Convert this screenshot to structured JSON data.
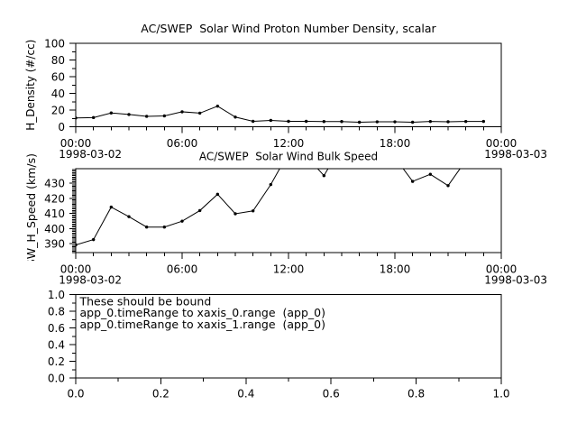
{
  "app": {
    "background_color": "#ffffff",
    "foreground_color": "#000000"
  },
  "chart_data": [
    {
      "type": "line",
      "title": "AC/SWEP  Solar Wind Proton Number Density, scalar",
      "ylabel": "H_Density (#/cc)",
      "xlabel": "",
      "x_hours": [
        0,
        1,
        2,
        3,
        4,
        5,
        6,
        7,
        8,
        9,
        10,
        11,
        12,
        13,
        14,
        15,
        16,
        17,
        18,
        19,
        20,
        21,
        22,
        23
      ],
      "values": [
        10.5,
        11.0,
        16.5,
        14.7,
        12.5,
        13.0,
        17.9,
        16.3,
        24.7,
        11.6,
        6.5,
        7.6,
        6.5,
        6.5,
        6.2,
        6.2,
        5.4,
        5.9,
        5.9,
        5.4,
        6.3,
        6.0,
        6.3,
        6.4
      ],
      "xlim_hours": [
        0,
        24
      ],
      "ylim": [
        0,
        100
      ],
      "yticks": {
        "major": [
          0,
          20,
          40,
          60,
          80,
          100
        ],
        "labels": [
          "0",
          "20",
          "40",
          "60",
          "80",
          "100"
        ],
        "minor_step": 10
      },
      "xticks": {
        "major_hours": [
          0,
          6,
          12,
          18,
          24
        ],
        "labels": [
          "00:00",
          "06:00",
          "12:00",
          "18:00",
          "00:00"
        ],
        "minor_step_hours": 1
      },
      "xdates": [
        {
          "label": "1998-03-02",
          "at_hour": 0
        },
        {
          "label": "1998-03-03",
          "at_hour": 24
        }
      ],
      "marker": "filled-circle",
      "line_color": "#000000",
      "grid": false,
      "legend": null
    },
    {
      "type": "line",
      "title": "AC/SWEP  Solar Wind Bulk Speed",
      "ylabel": "SW_H_Speed (km/s)",
      "xlabel": "",
      "x_hours": [
        0,
        1,
        2,
        3,
        4,
        5,
        6,
        7,
        8,
        9,
        10,
        11,
        12,
        13,
        14,
        15,
        16,
        17,
        18,
        19,
        20,
        21,
        22,
        23
      ],
      "values": [
        389.2,
        392.7,
        414.2,
        407.9,
        401.0,
        401.0,
        404.9,
        411.9,
        422.7,
        409.8,
        411.7,
        429.1,
        450.0,
        448.0,
        435.0,
        455.0,
        456.0,
        452.0,
        447.0,
        431.2,
        435.9,
        428.4,
        445.0,
        450.0
      ],
      "values_note": "points above 439.6 km/s are clipped by the plot top border",
      "xlim_hours": [
        0,
        24
      ],
      "ylim": [
        384.0,
        439.6
      ],
      "yticks": {
        "major": [
          390,
          400,
          410,
          420,
          430
        ],
        "labels": [
          "390",
          "400",
          "410",
          "420",
          "430"
        ],
        "minor_step": 1
      },
      "xticks": {
        "major_hours": [
          0,
          6,
          12,
          18,
          24
        ],
        "labels": [
          "00:00",
          "06:00",
          "12:00",
          "18:00",
          "00:00"
        ],
        "minor_step_hours": 1
      },
      "xdates": [
        {
          "label": "1998-03-02",
          "at_hour": 0
        },
        {
          "label": "1998-03-03",
          "at_hour": 24
        }
      ],
      "marker": "filled-circle",
      "line_color": "#000000",
      "grid": false,
      "legend": null
    },
    {
      "type": "empty",
      "title": "",
      "ylabel": "",
      "xlabel": "",
      "xlim": [
        0,
        1
      ],
      "ylim": [
        0,
        1
      ],
      "yticks": {
        "major": [
          0,
          0.2,
          0.4,
          0.6,
          0.8,
          1.0
        ],
        "labels": [
          "0.0",
          "0.2",
          "0.4",
          "0.6",
          "0.8",
          "1.0"
        ],
        "minor_step": 0.1
      },
      "xticks": {
        "major": [
          0,
          0.2,
          0.4,
          0.6,
          0.8,
          1.0
        ],
        "labels": [
          "0.0",
          "0.2",
          "0.4",
          "0.6",
          "0.8",
          "1.0"
        ],
        "minor_step": 0.1
      },
      "grid": false,
      "legend": null,
      "annotation": {
        "lines": [
          "These should be bound",
          "app_0.timeRange to xaxis_0.range  (app_0)",
          "app_0.timeRange to xaxis_1.range  (app_0)"
        ]
      }
    }
  ]
}
